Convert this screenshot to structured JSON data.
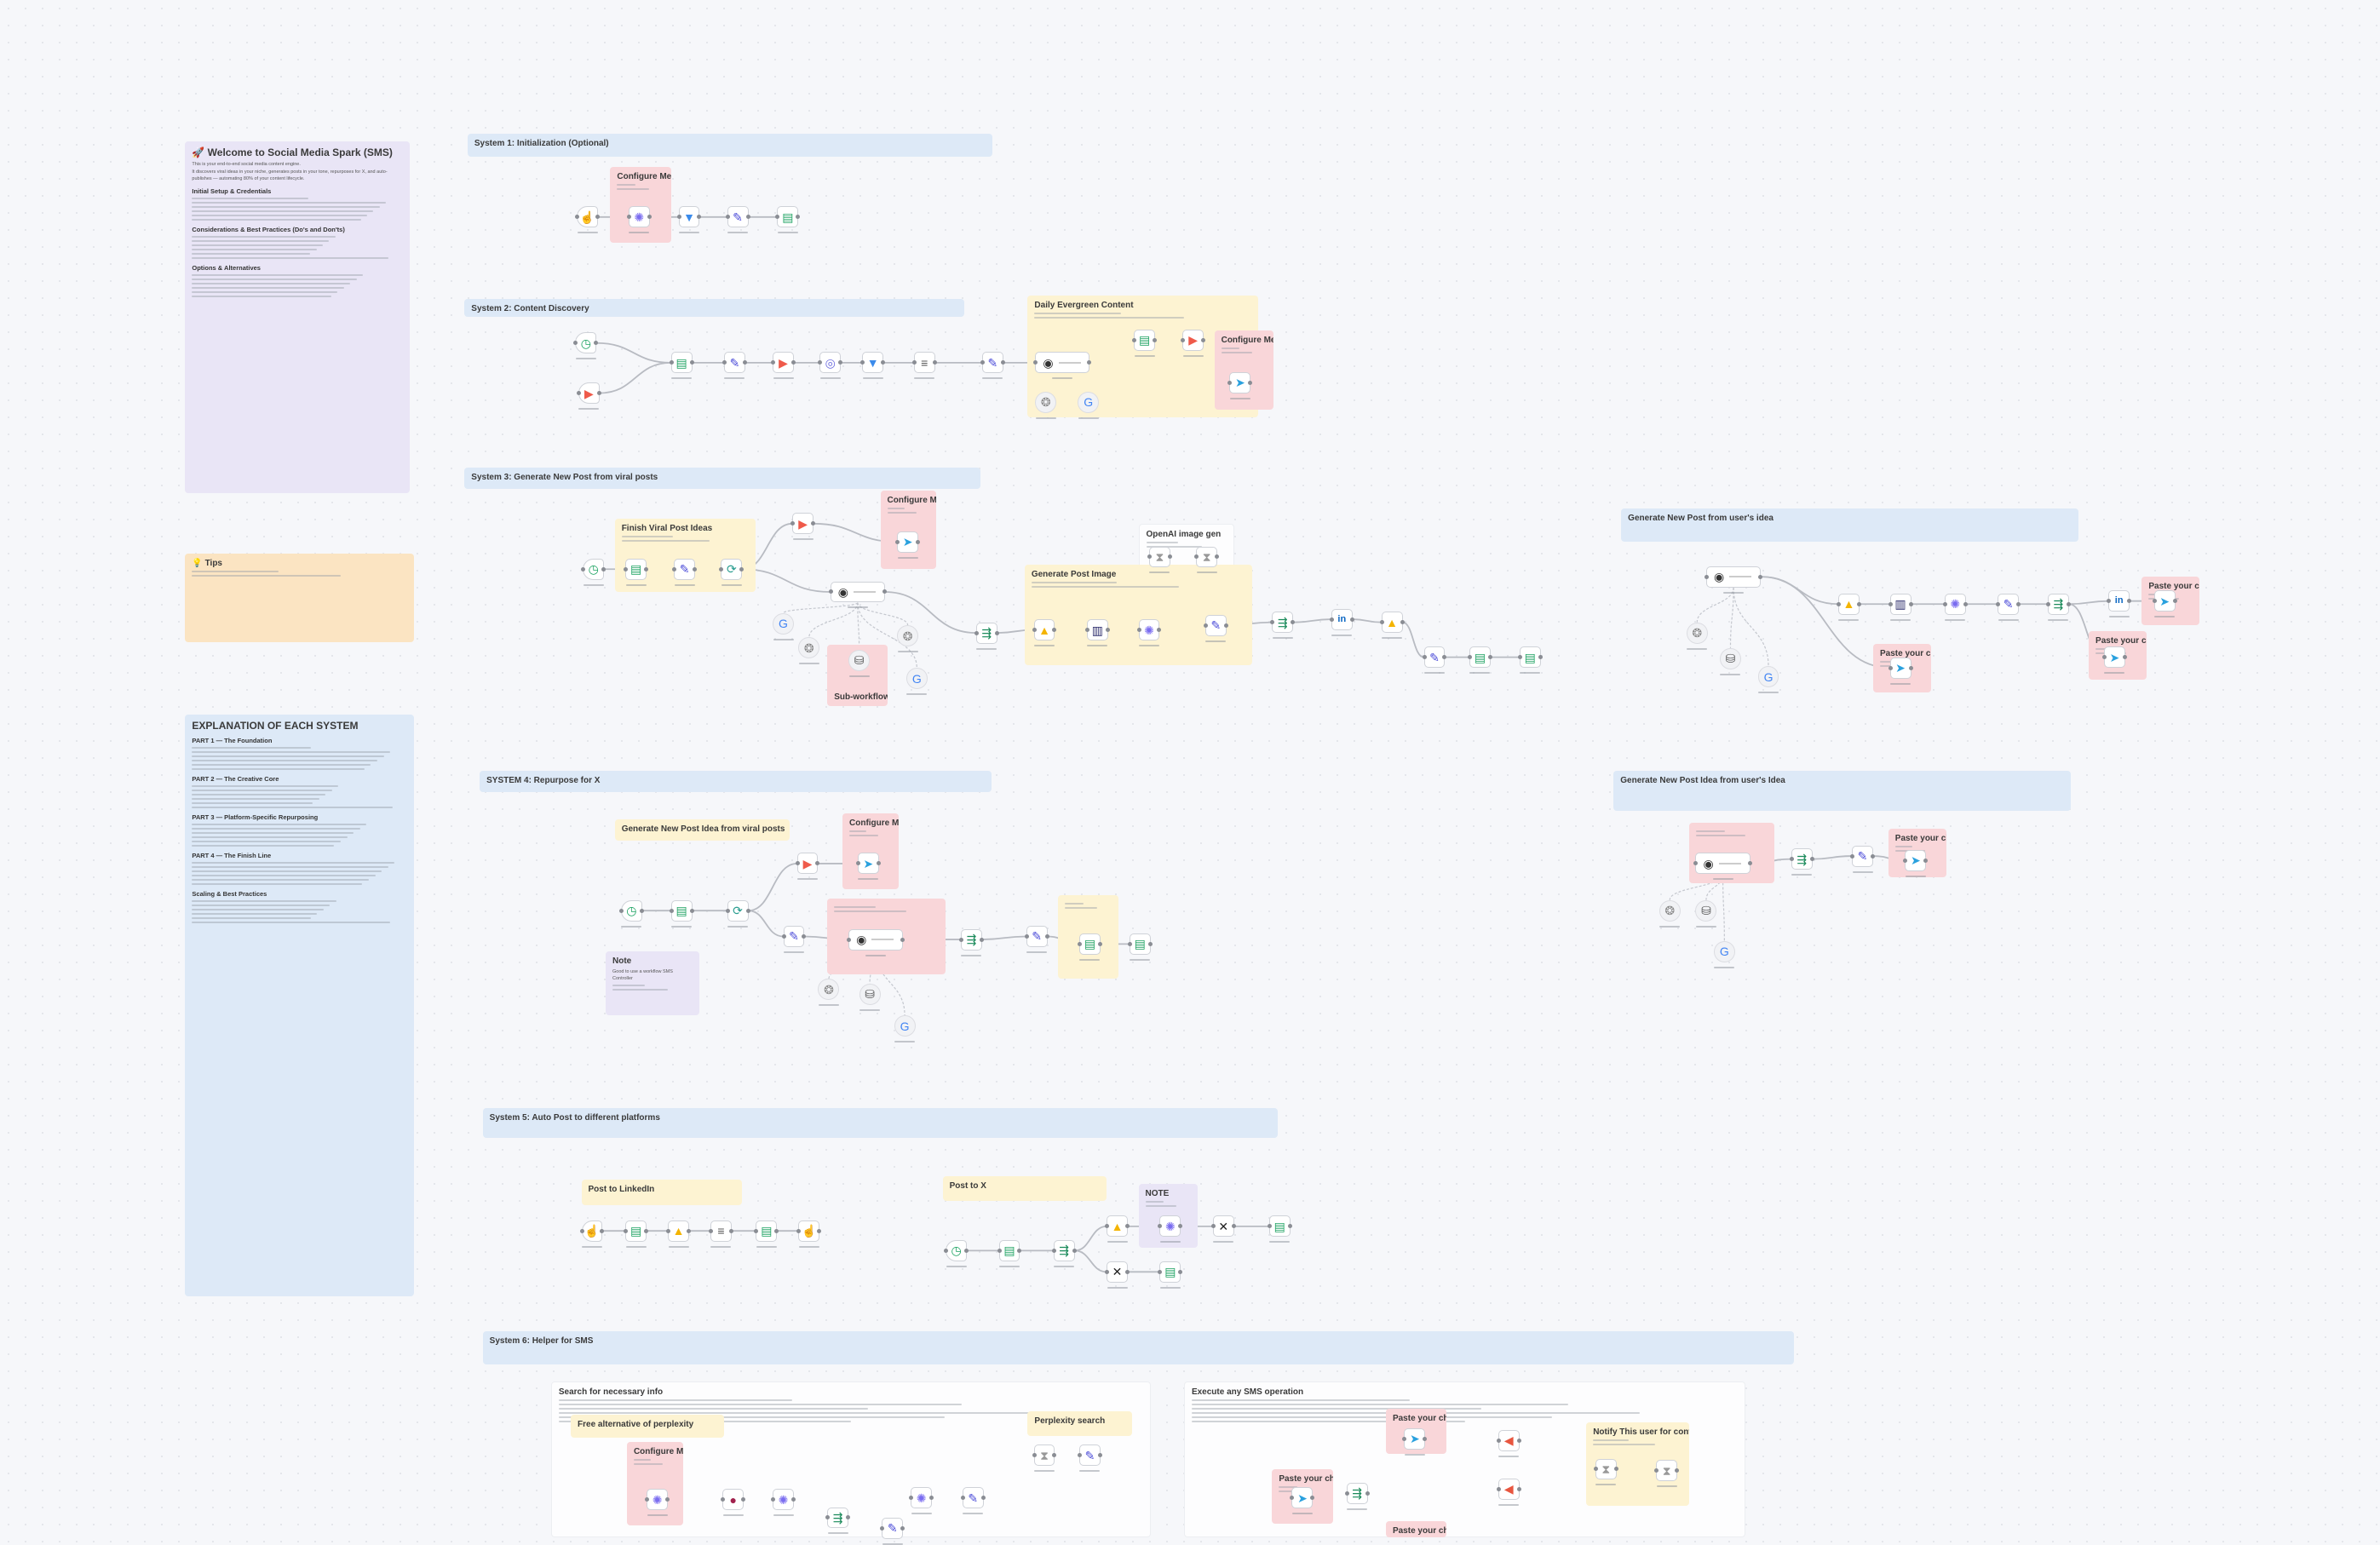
{
  "canvas": {
    "background": "#f6f7fa"
  },
  "note_colors": {
    "lavender": "#e9e5f6",
    "yellow": "#fdf3d2",
    "orange": "#fbe4c2",
    "blue": "#dde9f7",
    "red": "#f9d6d9",
    "white": "#fdfdfe"
  },
  "notes": [
    {
      "title": "🚀 Welcome to Social Media Spark (SMS)",
      "kind": "lavender",
      "body": [
        "This is your end-to-end social media content engine.",
        "It discovers viral ideas in your niche, generates posts in your tone, repurposes for X, and auto-publishes — automating 80% of your content lifecycle."
      ],
      "sections": [
        "Initial Setup & Credentials",
        "Considerations & Best Practices (Do's and Don'ts)",
        "Options & Alternatives"
      ]
    },
    {
      "title": "💡 Tips",
      "kind": "orange",
      "body": [],
      "sections": []
    },
    {
      "title": "EXPLANATION OF EACH SYSTEM",
      "kind": "blue",
      "body": [],
      "sections": [
        "PART 1 — The Foundation",
        "PART 2 — The Creative Core",
        "PART 3 — Platform-Specific Repurposing",
        "PART 4 — The Finish Line",
        "Scaling & Best Practices"
      ]
    },
    {
      "title": "System 1: Initialization (Optional)",
      "kind": "blue",
      "body": [],
      "sections": []
    },
    {
      "title": "Configure Me!",
      "kind": "red",
      "body": [],
      "sections": []
    },
    {
      "title": "System 2: Content Discovery",
      "kind": "blue",
      "body": [],
      "sections": []
    },
    {
      "title": "Daily Evergreen Content",
      "kind": "yellow",
      "body": [],
      "sections": []
    },
    {
      "title": "Configure Me!",
      "kind": "red",
      "body": [],
      "sections": []
    },
    {
      "title": "System 3: Generate New Post from viral posts",
      "kind": "blue",
      "body": [],
      "sections": []
    },
    {
      "title": "Finish Viral Post Ideas",
      "kind": "yellow",
      "body": [],
      "sections": []
    },
    {
      "title": "Configure Me!",
      "kind": "red",
      "body": [],
      "sections": []
    },
    {
      "title": "OpenAI image gen",
      "kind": "white",
      "body": [],
      "sections": []
    },
    {
      "title": "Generate Post Image",
      "kind": "yellow",
      "body": [],
      "sections": []
    },
    {
      "title": "Sub-workflow",
      "kind": "red",
      "body": [],
      "sections": []
    },
    {
      "title": "Generate New Post from user's idea",
      "kind": "blue",
      "body": [],
      "sections": []
    },
    {
      "title": "Paste your chatID",
      "kind": "red",
      "body": [],
      "sections": []
    },
    {
      "title": "Paste your chatID",
      "kind": "red",
      "body": [],
      "sections": []
    },
    {
      "title": "Paste your chatID",
      "kind": "red",
      "body": [],
      "sections": []
    },
    {
      "title": "SYSTEM 4: Repurpose for X",
      "kind": "blue",
      "body": [],
      "sections": []
    },
    {
      "title": "Generate New Post Idea from viral posts",
      "kind": "yellow",
      "body": [],
      "sections": []
    },
    {
      "title": "Configure Me!",
      "kind": "red",
      "body": [],
      "sections": []
    },
    {
      "title": "",
      "kind": "red",
      "body": [],
      "sections": []
    },
    {
      "title": "",
      "kind": "yellow",
      "body": [],
      "sections": []
    },
    {
      "title": "Note",
      "kind": "lavender",
      "body": [
        "Good to use a workflow SMS Controller"
      ],
      "sections": []
    },
    {
      "title": "Generate New Post Idea from user's Idea",
      "kind": "blue",
      "body": [],
      "sections": []
    },
    {
      "title": "",
      "kind": "red",
      "body": [],
      "sections": []
    },
    {
      "title": "Paste your chatID",
      "kind": "red",
      "body": [],
      "sections": []
    },
    {
      "title": "System 5: Auto Post to different platforms",
      "kind": "blue",
      "body": [],
      "sections": []
    },
    {
      "title": "Post to LinkedIn",
      "kind": "yellow",
      "body": [],
      "sections": []
    },
    {
      "title": "Post to X",
      "kind": "yellow",
      "body": [],
      "sections": []
    },
    {
      "title": "NOTE",
      "kind": "lavender",
      "body": [],
      "sections": []
    },
    {
      "title": "System 6: Helper for SMS",
      "kind": "blue",
      "body": [],
      "sections": []
    },
    {
      "title": "Search for necessary info",
      "kind": "white",
      "body": [],
      "sections": []
    },
    {
      "title": "Execute any SMS operation",
      "kind": "white",
      "body": [],
      "sections": []
    },
    {
      "title": "Free alternative of perplexity",
      "kind": "yellow",
      "body": [],
      "sections": []
    },
    {
      "title": "Perplexity search",
      "kind": "yellow",
      "body": [],
      "sections": []
    },
    {
      "title": "Configure Me!",
      "kind": "red",
      "body": [],
      "sections": []
    },
    {
      "title": "Paste your chatID",
      "kind": "red",
      "body": [],
      "sections": []
    },
    {
      "title": "Paste your chatID",
      "kind": "red",
      "body": [],
      "sections": []
    },
    {
      "title": "Paste your chatID",
      "kind": "red",
      "body": [],
      "sections": []
    },
    {
      "title": "Notify This user for convenience",
      "kind": "yellow",
      "body": [],
      "sections": []
    }
  ],
  "node_icons": {
    "manual": {
      "name": "manual-trigger-icon",
      "glyph": "☝",
      "color": "#9a9a9a"
    },
    "sheet": {
      "name": "google-sheets-icon",
      "glyph": "▤",
      "color": "#1ea362"
    },
    "pencil": {
      "name": "edit-fields-icon",
      "glyph": "✎",
      "color": "#4b4bd8"
    },
    "filter": {
      "name": "filter-icon",
      "glyph": "▼",
      "color": "#3b8beb"
    },
    "ai": {
      "name": "openai-icon",
      "glyph": "✺",
      "color": "#7a6cf0"
    },
    "agent": {
      "name": "ai-agent-icon",
      "glyph": "◉",
      "color": "#333333"
    },
    "telegram": {
      "name": "telegram-icon",
      "glyph": "➤",
      "color": "#2aa1de"
    },
    "drive": {
      "name": "google-drive-icon",
      "glyph": "▲",
      "color": "#f4b400"
    },
    "x": {
      "name": "x-twitter-icon",
      "glyph": "✕",
      "color": "#222222"
    },
    "schedule": {
      "name": "schedule-trigger-icon",
      "glyph": "◷",
      "color": "#1aa260"
    },
    "loop": {
      "name": "loop-icon",
      "glyph": "⟳",
      "color": "#2a9d8f"
    },
    "http": {
      "name": "http-request-icon",
      "glyph": "◎",
      "color": "#6b6bdf"
    },
    "youtube": {
      "name": "youtube-icon",
      "glyph": "▶",
      "color": "#ef5a4a"
    },
    "switch": {
      "name": "switch-icon",
      "glyph": "⇶",
      "color": "#1a8a5a"
    },
    "model": {
      "name": "chat-model-icon",
      "glyph": "❂",
      "color": "#888888"
    },
    "google": {
      "name": "google-search-icon",
      "glyph": "G",
      "color": "#4285f4"
    },
    "memory": {
      "name": "memory-icon",
      "glyph": "⛁",
      "color": "#555555"
    },
    "code": {
      "name": "code-icon",
      "glyph": "≡",
      "color": "#555555"
    },
    "stop": {
      "name": "stop-icon",
      "glyph": "●",
      "color": "#a1214d"
    },
    "speaker": {
      "name": "notify-icon",
      "glyph": "◀",
      "color": "#e8563f"
    },
    "doc": {
      "name": "document-icon",
      "glyph": "▥",
      "color": "#2b2b6b"
    },
    "linkedin": {
      "name": "linkedin-icon",
      "glyph": "in",
      "color": "#0a66c2"
    },
    "wait": {
      "name": "wait-icon",
      "glyph": "⧗",
      "color": "#999999"
    }
  }
}
